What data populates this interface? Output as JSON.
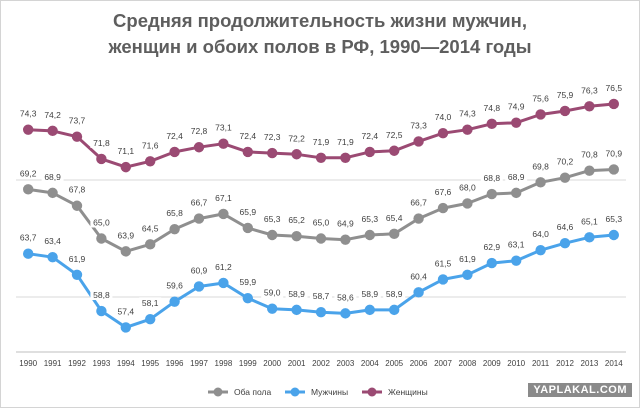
{
  "chart_data": {
    "type": "line",
    "title_lines": [
      "Средняя продолжительность жизни мужчин,",
      "женщин и обоих полов в РФ, 1990—2014 годы"
    ],
    "categories": [
      "1990",
      "1991",
      "1992",
      "1993",
      "1994",
      "1995",
      "1996",
      "1997",
      "1998",
      "1999",
      "2000",
      "2001",
      "2002",
      "2003",
      "2004",
      "2005",
      "2006",
      "2007",
      "2008",
      "2009",
      "2010",
      "2011",
      "2012",
      "2013",
      "2014"
    ],
    "series": [
      {
        "name": "Женщины",
        "color": "#9b4a73",
        "values": [
          74.3,
          74.2,
          73.7,
          71.8,
          71.1,
          71.6,
          72.4,
          72.8,
          73.1,
          72.4,
          72.3,
          72.2,
          71.9,
          71.9,
          72.4,
          72.5,
          73.3,
          74.0,
          74.3,
          74.8,
          74.9,
          75.6,
          75.9,
          76.3,
          76.5
        ],
        "labels": [
          "74,3",
          "74,2",
          "73,7",
          "71,8",
          "71,1",
          "71,6",
          "72,4",
          "72,8",
          "73,1",
          "72,4",
          "72,3",
          "72,2",
          "71,9",
          "71,9",
          "72,4",
          "72,5",
          "73,3",
          "74,0",
          "74,3",
          "74,8",
          "74,9",
          "75,6",
          "75,9",
          "76,3",
          "76,5"
        ]
      },
      {
        "name": "Оба пола",
        "color": "#8f8f8f",
        "values": [
          69.2,
          68.9,
          67.8,
          65.0,
          63.9,
          64.5,
          65.8,
          66.7,
          67.1,
          65.9,
          65.3,
          65.2,
          65.0,
          64.9,
          65.3,
          65.4,
          66.7,
          67.6,
          68.0,
          68.8,
          68.9,
          69.8,
          70.2,
          70.8,
          70.9
        ],
        "labels": [
          "69,2",
          "68,9",
          "67,8",
          "65,0",
          "63,9",
          "64,5",
          "65,8",
          "66,7",
          "67,1",
          "65,9",
          "65,3",
          "65,2",
          "65,0",
          "64,9",
          "65,3",
          "65,4",
          "66,7",
          "67,6",
          "68,0",
          "68,8",
          "68,9",
          "69,8",
          "70,2",
          "70,8",
          "70,9"
        ]
      },
      {
        "name": "Мужчины",
        "color": "#4aa3ea",
        "values": [
          63.7,
          63.4,
          61.9,
          58.8,
          57.4,
          58.1,
          59.6,
          60.9,
          61.2,
          59.9,
          59.0,
          58.9,
          58.7,
          58.6,
          58.9,
          58.9,
          60.4,
          61.5,
          61.9,
          62.9,
          63.1,
          64.0,
          64.6,
          65.1,
          65.3
        ],
        "labels": [
          "63,7",
          "63,4",
          "61,9",
          "58,8",
          "57,4",
          "58,1",
          "59,6",
          "60,9",
          "61,2",
          "59,9",
          "59,0",
          "58,9",
          "58,7",
          "58,6",
          "58,9",
          "58,9",
          "60,4",
          "61,5",
          "61,9",
          "62,9",
          "63,1",
          "64,0",
          "64,6",
          "65,1",
          "65,3"
        ]
      }
    ],
    "legend": {
      "placement": "bottom",
      "items": [
        {
          "name": "Оба пола",
          "color": "#8f8f8f"
        },
        {
          "name": "Мужчины",
          "color": "#4aa3ea"
        },
        {
          "name": "Женщины",
          "color": "#9b4a73"
        }
      ]
    },
    "gridlines_y": [
      60,
      70
    ],
    "xlabel": "",
    "ylabel": "",
    "y_axis_labels_shown": false
  },
  "watermark": "YAPLAKAL.COM"
}
